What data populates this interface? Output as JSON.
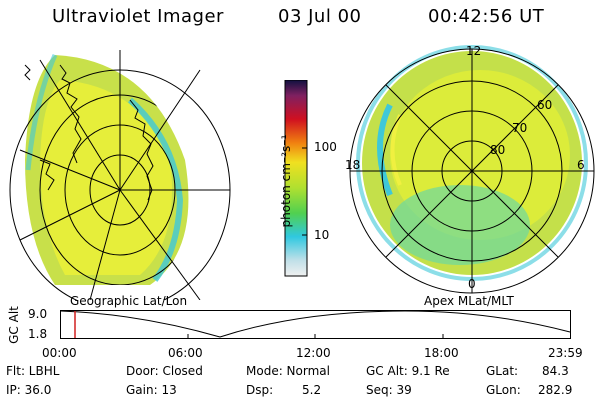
{
  "header": {
    "title": "Ultraviolet Imager",
    "date": "03 Jul 00",
    "time": "00:42:56 UT"
  },
  "colorbar": {
    "label": "photon cm⁻²s⁻¹",
    "ticks": [
      "100",
      "10"
    ]
  },
  "left_panel": {
    "caption": "Geographic Lat/Lon"
  },
  "right_panel": {
    "caption": "Apex MLat/MLT",
    "mlt_labels": {
      "top": "12",
      "left": "18",
      "right": "6",
      "bottom": "0"
    },
    "lat_labels": [
      "60",
      "70",
      "80"
    ]
  },
  "altitude_plot": {
    "ylabel": "GC Alt",
    "yticks": [
      "9.0",
      "1.8"
    ],
    "xticks": [
      "00:00",
      "06:00",
      "12:00",
      "18:00",
      "23:59"
    ]
  },
  "info": {
    "flt": "Flt: LBHL",
    "ip": "IP: 36.0",
    "door": "Door: Closed",
    "gain": "Gain: 13",
    "mode": "Mode: Normal",
    "dsp_label": "Dsp:",
    "dsp_value": "5.2",
    "gc_alt": "GC Alt: 9.1 Re",
    "seq": "Seq: 39",
    "glat_label": "GLat:",
    "glat_value": "84.3",
    "glon_label": "GLon:",
    "glon_value": "282.9"
  },
  "colors": {
    "auroral_fill": "#d4e83a",
    "auroral_dense": "#f0f040",
    "cyan_edge": "#3fc8d8"
  }
}
